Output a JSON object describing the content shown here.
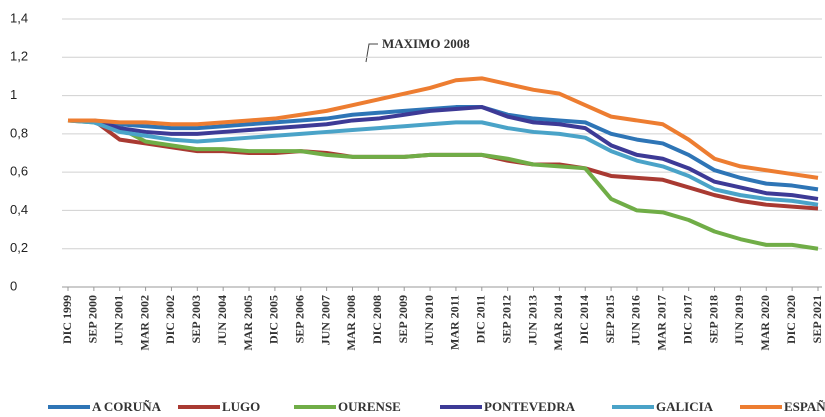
{
  "chart_data": {
    "type": "line",
    "annotations": [
      {
        "text": "MAXIMO 2008"
      }
    ],
    "categories": [
      "DIC 1999",
      "SEP 2000",
      "JUN 2001",
      "MAR 2002",
      "DIC 2002",
      "SEP 2003",
      "JUN 2004",
      "MAR 2005",
      "DIC 2005",
      "SEP 2006",
      "JUN 2007",
      "MAR 2008",
      "DIC 2008",
      "SEP 2009",
      "JUN 2010",
      "MAR 2011",
      "DIC 2011",
      "SEP 2012",
      "JUN 2013",
      "MAR 2014",
      "DIC 2014",
      "SEP 2015",
      "JUN 2016",
      "MAR 2017",
      "DIC 2017",
      "SEP 2018",
      "JUN 2019",
      "MAR 2020",
      "DIC 2020",
      "SEP 2021"
    ],
    "series": [
      {
        "name": "A CORUÑA",
        "color": "#2e75b6",
        "values": [
          0.87,
          0.87,
          0.85,
          0.84,
          0.83,
          0.83,
          0.84,
          0.85,
          0.86,
          0.87,
          0.88,
          0.9,
          0.91,
          0.92,
          0.93,
          0.94,
          0.94,
          0.9,
          0.88,
          0.87,
          0.86,
          0.8,
          0.77,
          0.75,
          0.69,
          0.61,
          0.57,
          0.54,
          0.53,
          0.51
        ]
      },
      {
        "name": "LUGO",
        "color": "#a93a32",
        "values": [
          0.87,
          0.87,
          0.77,
          0.75,
          0.73,
          0.71,
          0.71,
          0.7,
          0.7,
          0.71,
          0.7,
          0.68,
          0.68,
          0.68,
          0.69,
          0.69,
          0.69,
          0.66,
          0.64,
          0.64,
          0.62,
          0.58,
          0.57,
          0.56,
          0.52,
          0.48,
          0.45,
          0.43,
          0.42,
          0.41
        ]
      },
      {
        "name": "OURENSE",
        "color": "#70ad47",
        "values": [
          0.87,
          0.86,
          0.83,
          0.76,
          0.74,
          0.72,
          0.72,
          0.71,
          0.71,
          0.71,
          0.69,
          0.68,
          0.68,
          0.68,
          0.69,
          0.69,
          0.69,
          0.67,
          0.64,
          0.63,
          0.62,
          0.46,
          0.4,
          0.39,
          0.35,
          0.29,
          0.25,
          0.22,
          0.22,
          0.2
        ]
      },
      {
        "name": "PONTEVEDRA",
        "color": "#3d3a96",
        "values": [
          0.87,
          0.87,
          0.83,
          0.81,
          0.8,
          0.8,
          0.81,
          0.82,
          0.83,
          0.84,
          0.85,
          0.87,
          0.88,
          0.9,
          0.92,
          0.93,
          0.94,
          0.89,
          0.86,
          0.85,
          0.83,
          0.74,
          0.69,
          0.67,
          0.62,
          0.55,
          0.52,
          0.49,
          0.48,
          0.46
        ]
      },
      {
        "name": "GALICIA",
        "color": "#4aa3c8",
        "values": [
          0.87,
          0.86,
          0.81,
          0.79,
          0.77,
          0.76,
          0.77,
          0.78,
          0.79,
          0.8,
          0.81,
          0.82,
          0.83,
          0.84,
          0.85,
          0.86,
          0.86,
          0.83,
          0.81,
          0.8,
          0.78,
          0.71,
          0.66,
          0.63,
          0.58,
          0.51,
          0.48,
          0.46,
          0.45,
          0.43
        ]
      },
      {
        "name": "ESPAÑA",
        "color": "#ed7d31",
        "values": [
          0.87,
          0.87,
          0.86,
          0.86,
          0.85,
          0.85,
          0.86,
          0.87,
          0.88,
          0.9,
          0.92,
          0.95,
          0.98,
          1.01,
          1.04,
          1.08,
          1.09,
          1.06,
          1.03,
          1.01,
          0.95,
          0.89,
          0.87,
          0.85,
          0.77,
          0.67,
          0.63,
          0.61,
          0.59,
          0.57
        ]
      }
    ],
    "ylim": [
      0,
      1.4
    ],
    "yticks": [
      0,
      {
        "value": 0.2,
        "label": "0,2"
      },
      {
        "value": 0.4,
        "label": "0,4"
      },
      {
        "value": 0.6,
        "label": "0,6"
      },
      {
        "value": 0.8,
        "label": "0,8"
      },
      1,
      {
        "value": 1.2,
        "label": "1,2"
      },
      {
        "value": 1.4,
        "label": "1,4"
      }
    ],
    "grid": true,
    "legend": "bottom"
  }
}
